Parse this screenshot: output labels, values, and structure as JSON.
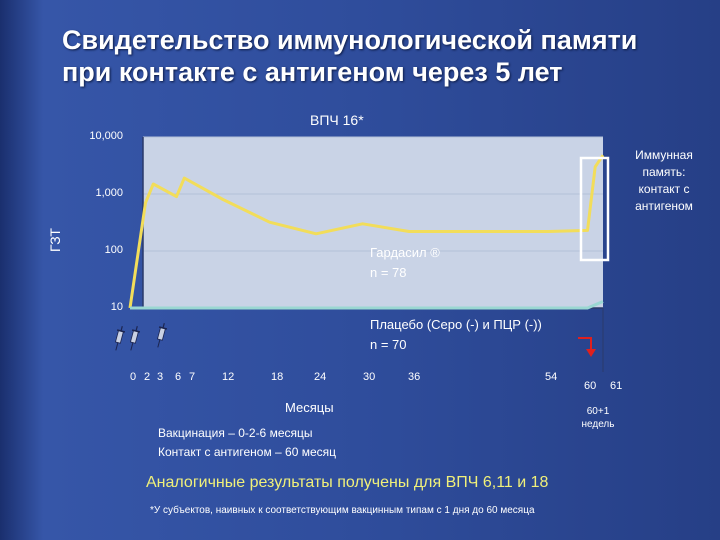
{
  "title": {
    "line1": "Свидетельство иммунологической памяти",
    "line2": "при контакте с антигеном через 5 лет"
  },
  "chart_data": {
    "type": "line",
    "title": "ВПЧ 16*",
    "ylabel": "ГЗТ",
    "xlabel": "Месяцы",
    "y_scale": "log",
    "ylim": [
      10,
      10000
    ],
    "y_ticks": [
      "10,000",
      "1,000",
      "100",
      "10"
    ],
    "x_tick_labels": [
      "0",
      "2",
      "3",
      "6",
      "7",
      "12",
      "18",
      "24",
      "30",
      "36",
      "54",
      "60",
      "61"
    ],
    "series": [
      {
        "name": "Гардасил ® n = 78",
        "color": "#f2dd5a",
        "points": [
          [
            0,
            10
          ],
          [
            2,
            700
          ],
          [
            3,
            1500
          ],
          [
            6,
            900
          ],
          [
            7,
            1900
          ],
          [
            12,
            800
          ],
          [
            18,
            320
          ],
          [
            24,
            200
          ],
          [
            30,
            300
          ],
          [
            36,
            220
          ],
          [
            54,
            220
          ],
          [
            59,
            230
          ],
          [
            60,
            3000
          ],
          [
            61,
            4800
          ]
        ]
      },
      {
        "name": "Плацебо (Серо (-) и ПЦР (-)) n = 70",
        "color": "#9ad7d2",
        "points": [
          [
            0,
            10
          ],
          [
            59,
            10
          ],
          [
            61,
            13
          ]
        ]
      }
    ],
    "annotations": {
      "gardasil_label": "Гардасил ®",
      "gardasil_n": "n = 78",
      "placebo_label": "Плацебо (Серо (-) и ПЦР (-))",
      "placebo_n": "n = 70",
      "memory": [
        "Иммунная",
        "память:",
        "контакт с",
        "антигеном"
      ],
      "week_label": [
        "60+1",
        "недель"
      ]
    }
  },
  "notes": {
    "vaccination": "Вакцинация – 0-2-6 месяцы",
    "contact": "Контакт с антигеном – 60 месяц"
  },
  "summary": "Аналогичные результаты получены для ВПЧ 6,11 и 18",
  "footnote": "*У субъектов, наивных к соответствующим вакцинным типам с 1 дня до 60 месяца",
  "colors": {
    "background": "#2f4d9c",
    "plot_area": "#c9d3e6",
    "memory_box": "#ffffff",
    "arrow": "#e0201e",
    "summary_text": "#f0f07a"
  }
}
